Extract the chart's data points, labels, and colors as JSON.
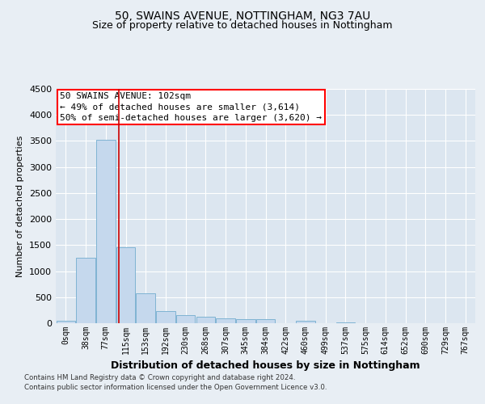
{
  "title_line1": "50, SWAINS AVENUE, NOTTINGHAM, NG3 7AU",
  "title_line2": "Size of property relative to detached houses in Nottingham",
  "xlabel": "Distribution of detached houses by size in Nottingham",
  "ylabel": "Number of detached properties",
  "bar_color": "#c5d8ed",
  "bar_edge_color": "#7fb3d3",
  "categories": [
    "0sqm",
    "38sqm",
    "77sqm",
    "115sqm",
    "153sqm",
    "192sqm",
    "230sqm",
    "268sqm",
    "307sqm",
    "345sqm",
    "384sqm",
    "422sqm",
    "460sqm",
    "499sqm",
    "537sqm",
    "575sqm",
    "614sqm",
    "652sqm",
    "690sqm",
    "729sqm",
    "767sqm"
  ],
  "values": [
    50,
    1250,
    3520,
    1460,
    580,
    230,
    150,
    130,
    100,
    75,
    70,
    0,
    50,
    0,
    20,
    0,
    0,
    0,
    0,
    0,
    0
  ],
  "annotation_text": "50 SWAINS AVENUE: 102sqm\n← 49% of detached houses are smaller (3,614)\n50% of semi-detached houses are larger (3,620) →",
  "footer_line1": "Contains HM Land Registry data © Crown copyright and database right 2024.",
  "footer_line2": "Contains public sector information licensed under the Open Government Licence v3.0.",
  "ylim": [
    0,
    4500
  ],
  "yticks": [
    0,
    500,
    1000,
    1500,
    2000,
    2500,
    3000,
    3500,
    4000,
    4500
  ],
  "background_color": "#e8eef4",
  "plot_bg_color": "#dce6f0",
  "grid_color": "#ffffff",
  "vline_color": "#cc0000",
  "annotation_font_size": 8,
  "title_font_size": 10,
  "subtitle_font_size": 9
}
